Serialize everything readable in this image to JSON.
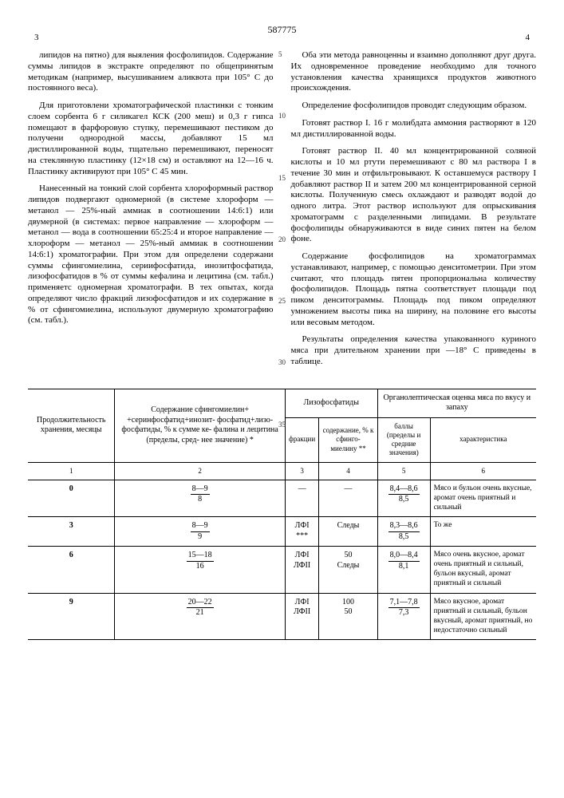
{
  "doc_number": "587775",
  "page_left": "3",
  "page_right": "4",
  "side_numbers": [
    "5",
    "10",
    "15",
    "20",
    "25",
    "30",
    "35"
  ],
  "left_paragraphs": [
    "липидов на пятно) для выяления фосфолипидов. Содержание суммы липидов в экстракте определяют по общепринятым методикам (например, высушиванием аликвота при 105° С до постоянного веса).",
    "Для приготовлени хроматографической пластинки с тонким слоем сорбента 6 г силикагел КСК (200 меш) и 0,3 г гипса помещают в фарфоровую ступку, перемешивают пестиком до получени однородной массы, добавляют 15 мл дистиллированной воды, тщательно перемешивают, переносят на стеклянную пластинку (12×18 см) и оставляют на 12—16 ч. Пластинку активируют при 105° С 45 мин.",
    "Нанесенный на тонкий слой сорбента хлороформный раствор липидов подвергают одномерной (в системе хлороформ — метанол — 25%-ный аммиак в соотношении 14:6:1) или двумерной (в системах: первое направление — хлороформ — метанол — вода в соотношении 65:25:4 и второе направление — хлороформ — метанол — 25%-ный аммиак в соотношении 14:6:1) хроматографии. При этом для определени содержани суммы сфингомиелина, сериифосфатида, инозитфосфатида, лизофосфатидов в % от суммы кефалина и лецитина (см. табл.) применяетс одномерная хроматографи. В тех опытах, когда определяют число фракций лизофосфатидов и их содержание в % от сфингомиелина, используют двумерную хроматографию (см. табл.)."
  ],
  "right_paragraphs": [
    "Оба эти метода равноценны и взаимно дополняют друг друга. Их одновременное проведение необходимо для точного установления качества хранящихся продуктов животного происхождения.",
    "Определение фосфолипидов проводят следующим образом.",
    "Готовят раствор I. 16 г молибдата аммония растворяют в 120 мл дистиллированной воды.",
    "Готовят раствор II. 40 мл концентрированной соляной кислоты и 10 мл ртути перемешивают с 80 мл раствора I в течение 30 мин и отфильтровывают. К оставшемуся раствору I добавляют раствор II и затем 200 мл концентрированной серной кислоты. Полученную смесь охлаждают и разводят водой до одного литра. Этот раствор используют для опрыскивания хроматограмм с разделенными липидами. В результате фосфолипиды обнаруживаются в виде синих пятен на белом фоне.",
    "Содержание фосфолипидов на хроматограммах устанавливают, например, с помощью денситометрии. При этом считают, что площадь пятен пропорциональна количеству фосфолипидов. Площадь пятна соответствует площади под пиком денситограммы. Площадь под пиком определяют умножением высоты пика на ширину, на половине его высоты или весовым методом.",
    "Результаты определения качества упакованного куриного мяса при длительном хранении при —18° С приведены в таблице."
  ],
  "table": {
    "head": {
      "c1": "Продолжительность хранения, месяцы",
      "c2": "Содержание сфингомиелин+\n+серинфосфатид+инозит-\nфосфатид+лизо-\nфосфатиды,\n% к сумме ке-\nфалина и лецитина\n(пределы, сред-\nнее значение) *",
      "c34": "Лизофосфатиды",
      "c3": "фракции",
      "c4": "содержание, % к сфинго-\nмиелину **",
      "c56": "Органолептическая оценка мяса\nпо вкусу и запаху",
      "c5": "баллы\n(пределы\nи средние\nзначения)",
      "c6": "характеристика"
    },
    "colnums": [
      "1",
      "2",
      "3",
      "4",
      "5",
      "6"
    ],
    "rows": [
      {
        "m": "0",
        "c2n": "8—9",
        "c2d": "8",
        "c3": "—",
        "c4": "—",
        "c5n": "8,4—8,6",
        "c5d": "8,5",
        "c6": "Мясо и бульон очень вкусные, аромат очень приятный и сильный"
      },
      {
        "m": "3",
        "c2n": "8—9",
        "c2d": "9",
        "c3": "ЛФI ***",
        "c4": "Следы",
        "c5n": "8,3—8,6",
        "c5d": "8,5",
        "c6": "То же"
      },
      {
        "m": "6",
        "c2n": "15—18",
        "c2d": "16",
        "c3": "ЛФI\nЛФII",
        "c4": "50\nСледы",
        "c5n": "8,0—8,4",
        "c5d": "8,1",
        "c6": "Мясо очень вкусное, аромат очень приятный и сильный, бульон вкусный, аромат приятный и сильный"
      },
      {
        "m": "9",
        "c2n": "20—22",
        "c2d": "21",
        "c3": "ЛФI\nЛФII",
        "c4": "100\n50",
        "c5n": "7,1—7,8",
        "c5d": "7,3",
        "c6": "Мясо вкусное, аромат приятный и сильный, бульон вкусный, аромат приятный, но недостаточно сильный"
      }
    ]
  }
}
